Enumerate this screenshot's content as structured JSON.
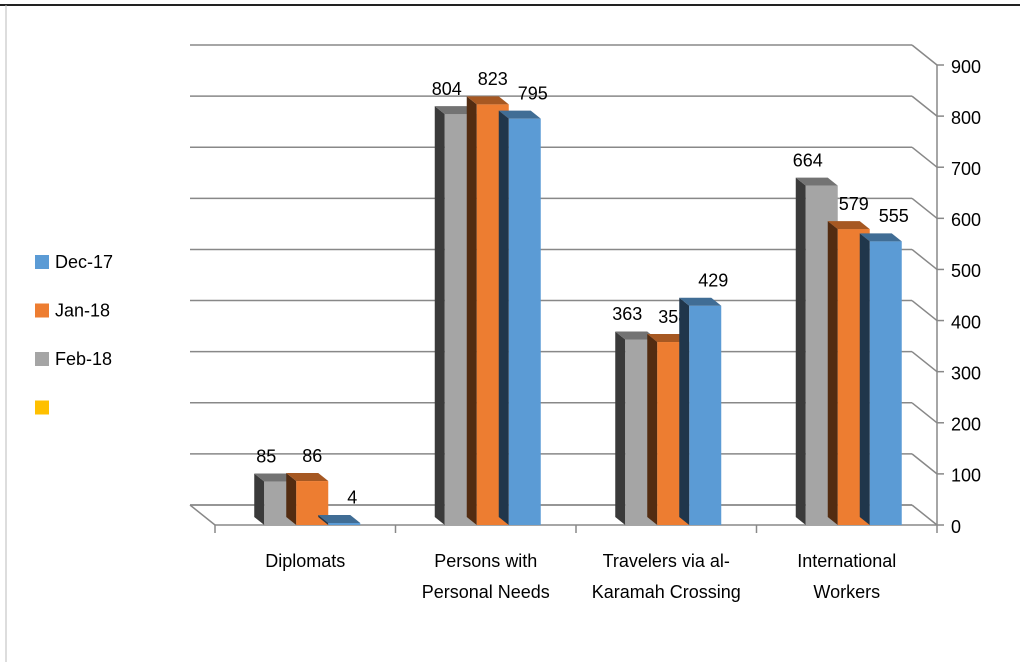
{
  "chart_data": {
    "type": "bar3d",
    "categories": [
      "Diplomats",
      "Persons with Personal Needs",
      "Travelers via al-Karamah Crossing",
      "International Workers"
    ],
    "series": [
      {
        "name": "Dec-17",
        "color": "#5b9bd5",
        "values": [
          4,
          795,
          429,
          555
        ]
      },
      {
        "name": "Jan-18",
        "color": "#ed7d31",
        "values": [
          86,
          823,
          358,
          579
        ]
      },
      {
        "name": "Feb-18",
        "color": "#a5a5a5",
        "values": [
          85,
          804,
          363,
          664
        ]
      },
      {
        "name": null,
        "color": "#ffc000",
        "values": [
          null,
          null,
          null,
          null
        ]
      }
    ],
    "ylim": [
      0,
      900
    ],
    "yticks": [
      0,
      100,
      200,
      300,
      400,
      500,
      600,
      700,
      800,
      900
    ],
    "grid": true,
    "legend": "left"
  }
}
